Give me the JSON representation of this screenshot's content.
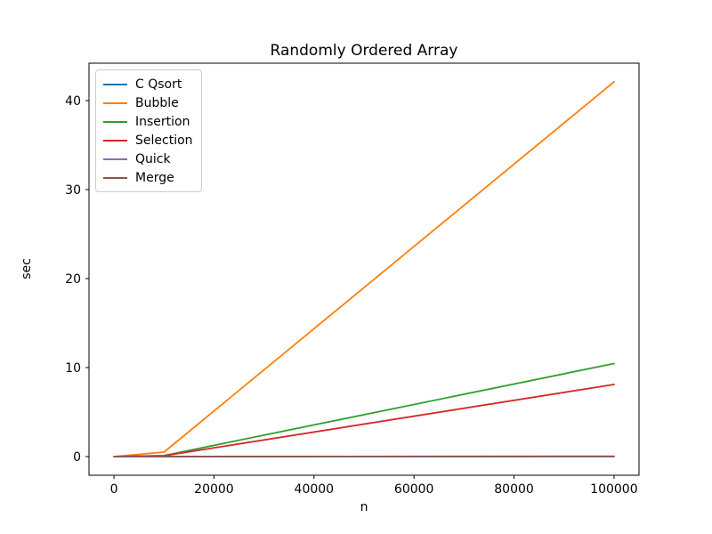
{
  "chart_data": {
    "type": "line",
    "title": "Randomly Ordered Array",
    "xlabel": "n",
    "ylabel": "sec",
    "x": [
      0,
      10000,
      100000
    ],
    "series": [
      {
        "name": "C Qsort",
        "color": "#1f77b4",
        "values": [
          0.0,
          0.002,
          0.025
        ]
      },
      {
        "name": "Bubble",
        "color": "#ff7f0e",
        "values": [
          0.0,
          0.5,
          42.1
        ]
      },
      {
        "name": "Insertion",
        "color": "#2ca02c",
        "values": [
          0.0,
          0.11,
          10.45
        ]
      },
      {
        "name": "Selection",
        "color": "#d62728",
        "values": [
          0.0,
          0.09,
          8.1
        ]
      },
      {
        "name": "Quick",
        "color": "#9467bd",
        "values": [
          0.0,
          0.001,
          0.014
        ]
      },
      {
        "name": "Merge",
        "color": "#8c564b",
        "values": [
          0.0,
          0.002,
          0.021
        ]
      }
    ],
    "xlim": [
      -5000,
      105000
    ],
    "ylim": [
      -2.1,
      44.2
    ],
    "xticks": [
      0,
      20000,
      40000,
      60000,
      80000,
      100000
    ],
    "yticks": [
      0,
      10,
      20,
      30,
      40
    ],
    "grid": false,
    "legend_position": "upper left",
    "axis_color": "#000000",
    "background_color": "#ffffff"
  }
}
